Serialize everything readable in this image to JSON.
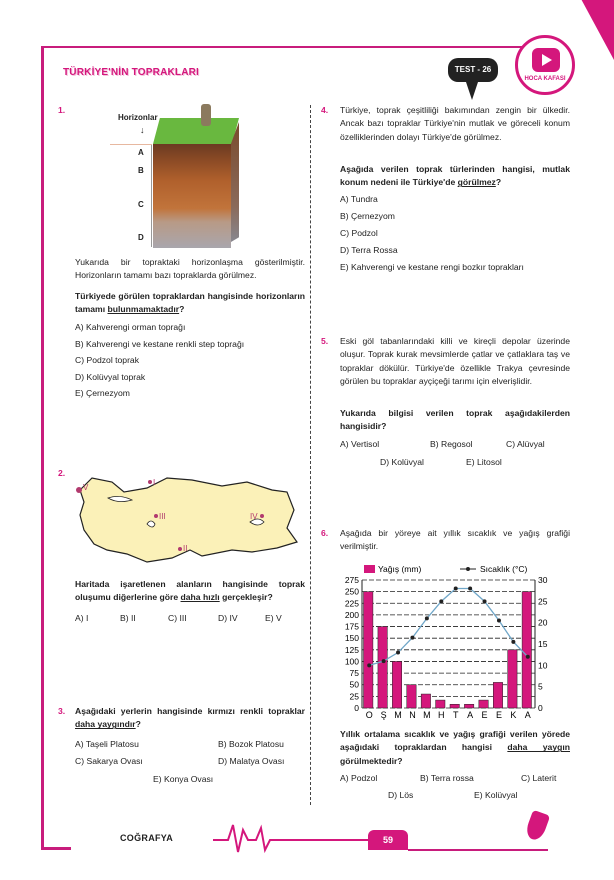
{
  "header": {
    "title": "TÜRKİYE'NİN TOPRAKLARI",
    "test_label": "TEST - 26",
    "logo_text": "HOCA KAFASI"
  },
  "footer": {
    "subject": "COĞRAFYA",
    "page": "59"
  },
  "q1": {
    "number": "1.",
    "figure": {
      "title": "Horizonlar",
      "labels": [
        "A",
        "B",
        "C",
        "D"
      ]
    },
    "stem": "Yukarıda bir topraktaki horizonlaşma gösterilmiştir. Horizonların tamamı bazı topraklarda görülmez.",
    "question_pre": "Türkiyede görülen topraklardan hangisinde horizonların tamamı ",
    "question_u": "bulunmamaktadır",
    "question_post": "?",
    "options": [
      "A)  Kahverengi orman toprağı",
      "B)  Kahverengi ve kestane renkli step toprağı",
      "C)  Podzol toprak",
      "D)  Kolüvyal toprak",
      "E)  Çernezyom"
    ]
  },
  "q2": {
    "number": "2.",
    "map_labels": [
      "I",
      "II",
      "III",
      "IV",
      "V"
    ],
    "question_pre": "Haritada işaretlenen alanların hangisinde toprak oluşumu diğerlerine göre ",
    "question_u": "daha hızlı",
    "question_post": " gerçekleşir?",
    "options": [
      "A) I",
      "B) II",
      "C) III",
      "D) IV",
      "E) V"
    ]
  },
  "q3": {
    "number": "3.",
    "question_pre": "Aşağıdaki yerlerin hangisinde kırmızı renkli topraklar ",
    "question_u": "daha yaygındır",
    "question_post": "?",
    "options": [
      "A) Taşeli Platosu",
      "B) Bozok Platosu",
      "C) Sakarya Ovası",
      "D) Malatya Ovası",
      "E) Konya Ovası"
    ]
  },
  "q4": {
    "number": "4.",
    "stem": "Türkiye, toprak çeşitliliği bakımından zengin bir ülkedir. Ancak bazı topraklar Türkiye'nin mutlak ve göreceli konum özelliklerinden dolayı Türkiye'de görülmez.",
    "question_pre": "Aşağıda verilen toprak türlerinden hangisi, mutlak konum nedeni ile Türkiye'de ",
    "question_u": "görülmez",
    "question_post": "?",
    "options": [
      "A)  Tundra",
      "B)  Çernezyom",
      "C)  Podzol",
      "D)  Terra Rossa",
      "E)  Kahverengi ve kestane rengi bozkır toprakları"
    ]
  },
  "q5": {
    "number": "5.",
    "stem": "Eski göl tabanlarındaki killi ve kireçli depolar üzerinde oluşur. Toprak kurak mevsimlerde çatlar ve çatlaklara taş ve topraklar dökülür. Türkiye'de özellikle Trakya çevresinde görülen bu topraklar ayçiçeği tarımı için elverişlidir.",
    "question": "Yukarıda bilgisi verilen toprak aşağıdakilerden hangisidir?",
    "options": [
      "A) Vertisol",
      "B) Regosol",
      "C) Alüvyal",
      "D) Kolüvyal",
      "E) Litosol"
    ]
  },
  "q6": {
    "number": "6.",
    "stem": "Aşağıda bir yöreye ait yıllık sıcaklık ve yağış grafiği verilmiştir.",
    "question_pre": "Yıllık ortalama sıcaklık ve yağış grafiği verilen yörede aşağıdaki topraklardan hangisi ",
    "question_u": "daha yaygın",
    "question_post": " görülmektedir?",
    "options": [
      "A) Podzol",
      "B) Terra rossa",
      "C) Laterit",
      "D) Lös",
      "E) Kolüvyal"
    ]
  },
  "chart_data": {
    "type": "bar+line",
    "categories": [
      "O",
      "Ş",
      "M",
      "N",
      "M",
      "H",
      "T",
      "A",
      "E",
      "E",
      "K",
      "A"
    ],
    "series": [
      {
        "name": "Yağış (mm)",
        "type": "bar",
        "axis": "left",
        "values": [
          250,
          175,
          100,
          50,
          30,
          17,
          8,
          8,
          17,
          55,
          125,
          250
        ]
      },
      {
        "name": "Sıcaklık (°C)",
        "type": "line",
        "axis": "right",
        "values": [
          10,
          11,
          13,
          16.5,
          21,
          25,
          28,
          28,
          25,
          20.5,
          15.5,
          12
        ]
      }
    ],
    "ylim_left": [
      0,
      275
    ],
    "yticks_left": [
      0,
      25,
      50,
      75,
      100,
      125,
      150,
      175,
      200,
      225,
      250,
      275
    ],
    "ylim_right": [
      0,
      30
    ],
    "yticks_right": [
      0,
      5,
      10,
      15,
      20,
      25,
      30
    ],
    "grid": true,
    "legend": "top",
    "colors": {
      "bar": "#d4177c",
      "line": "#6fa6c8"
    }
  },
  "colors": {
    "accent": "#d4177c"
  }
}
